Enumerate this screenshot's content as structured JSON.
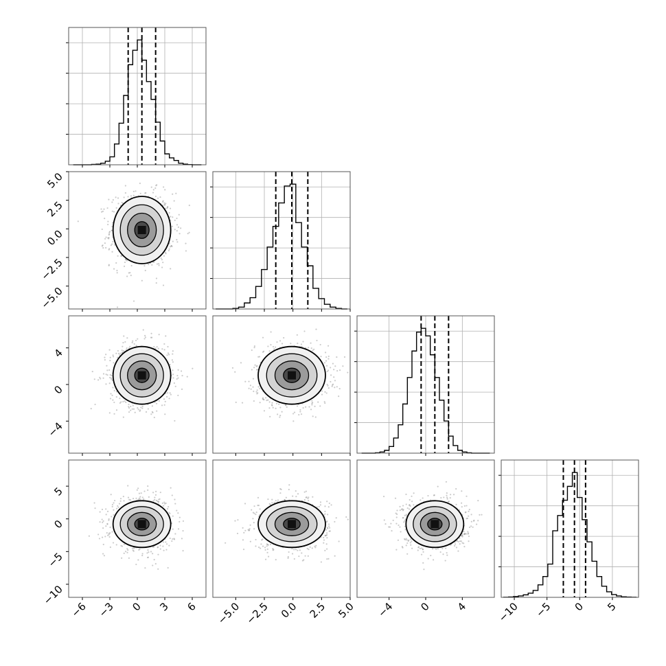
{
  "figure": {
    "n_params": 4,
    "background": "#ffffff",
    "grid_color": "#b0b0b0",
    "hist_color": "#000000",
    "point_color": "#8c8c8c"
  },
  "chart_data": [
    {
      "type": "histogram",
      "panel": "marginal-x0",
      "xlim": [
        -7.5,
        7.5
      ],
      "bin_centers": [
        -6.75,
        -6.25,
        -5.75,
        -5.25,
        -4.75,
        -4.25,
        -3.75,
        -3.25,
        -2.75,
        -2.25,
        -1.75,
        -1.25,
        -0.75,
        -0.25,
        0.25,
        0.75,
        1.25,
        1.75,
        2.25,
        2.75,
        3.25,
        3.75,
        4.25,
        4.75,
        5.25,
        5.75,
        6.25,
        6.75
      ],
      "counts": [
        0,
        0,
        0,
        0,
        2,
        3,
        8,
        18,
        40,
        105,
        210,
        350,
        505,
        578,
        630,
        528,
        420,
        330,
        215,
        120,
        55,
        35,
        22,
        8,
        3,
        1,
        0,
        0
      ],
      "quantiles": [
        -1.0,
        0.5,
        2.0
      ],
      "grid": true
    },
    {
      "type": "histogram",
      "panel": "marginal-x1",
      "xlim": [
        -7.0,
        5.0
      ],
      "bin_centers": [
        -6.5,
        -6.0,
        -5.5,
        -5.0,
        -4.5,
        -4.0,
        -3.5,
        -3.0,
        -2.5,
        -2.0,
        -1.5,
        -1.0,
        -0.5,
        0.0,
        0.5,
        1.0,
        1.5,
        2.0,
        2.5,
        3.0,
        3.5,
        4.0,
        4.5
      ],
      "counts": [
        0,
        0,
        0,
        3,
        10,
        32,
        60,
        120,
        210,
        330,
        440,
        565,
        655,
        665,
        460,
        330,
        230,
        110,
        55,
        25,
        10,
        3,
        0
      ],
      "quantiles": [
        -1.5,
        -0.1,
        1.3
      ],
      "grid": true
    },
    {
      "type": "histogram",
      "panel": "marginal-x2",
      "xlim": [
        -7.5,
        7.5
      ],
      "bin_centers": [
        -6.75,
        -6.25,
        -5.75,
        -5.25,
        -4.75,
        -4.25,
        -3.75,
        -3.25,
        -2.75,
        -2.25,
        -1.75,
        -1.25,
        -0.75,
        -0.25,
        0.25,
        0.75,
        1.25,
        1.75,
        2.25,
        2.75,
        3.25,
        3.75,
        4.25,
        4.75,
        5.25,
        5.75,
        6.25,
        6.75
      ],
      "counts": [
        0,
        0,
        0,
        2,
        6,
        15,
        35,
        80,
        150,
        260,
        400,
        540,
        640,
        660,
        620,
        520,
        400,
        280,
        170,
        90,
        40,
        15,
        6,
        2,
        0,
        0,
        0,
        0
      ],
      "quantiles": [
        -0.5,
        1.0,
        2.5
      ],
      "grid": true
    },
    {
      "type": "histogram",
      "panel": "marginal-x3",
      "xlim": [
        -12,
        9
      ],
      "bin_centers": [
        -11.25,
        -10.5,
        -9.75,
        -9.0,
        -8.25,
        -7.5,
        -6.75,
        -6.0,
        -5.25,
        -4.5,
        -3.75,
        -3.0,
        -2.25,
        -1.5,
        -0.75,
        0.0,
        0.75,
        1.5,
        2.25,
        3.0,
        3.75,
        4.5,
        5.25,
        6.0,
        6.75,
        7.5,
        8.25
      ],
      "counts": [
        1,
        3,
        6,
        10,
        18,
        30,
        50,
        90,
        150,
        240,
        480,
        590,
        700,
        800,
        900,
        720,
        560,
        400,
        260,
        150,
        80,
        40,
        20,
        10,
        4,
        2,
        1
      ],
      "quantiles": [
        -2.5,
        -0.8,
        0.9
      ],
      "grid": true
    },
    {
      "type": "scatter",
      "panel": "joint-x0-x1",
      "center": [
        0.5,
        -0.1
      ],
      "std": [
        1.5,
        1.4
      ],
      "contour_sigma": [
        0.5,
        1.0,
        1.5,
        2.0
      ],
      "xlim": [
        -7.5,
        7.5
      ],
      "ylim": [
        -7.0,
        5.0
      ]
    },
    {
      "type": "scatter",
      "panel": "joint-x0-x2",
      "center": [
        0.5,
        1.0
      ],
      "std": [
        1.5,
        1.5
      ],
      "contour_sigma": [
        0.5,
        1.0,
        1.5,
        2.0
      ],
      "xlim": [
        -7.5,
        7.5
      ],
      "ylim": [
        -7.5,
        7.5
      ]
    },
    {
      "type": "scatter",
      "panel": "joint-x1-x2",
      "center": [
        -0.1,
        1.0
      ],
      "std": [
        1.4,
        1.5
      ],
      "contour_sigma": [
        0.5,
        1.0,
        1.5,
        2.0
      ],
      "xlim": [
        -7.0,
        5.0
      ],
      "ylim": [
        -7.5,
        7.5
      ]
    },
    {
      "type": "scatter",
      "panel": "joint-x0-x3",
      "center": [
        0.5,
        -0.8
      ],
      "std": [
        1.5,
        1.7
      ],
      "contour_sigma": [
        0.5,
        1.0,
        1.5,
        2.0
      ],
      "xlim": [
        -7.5,
        7.5
      ],
      "ylim": [
        -12,
        9
      ]
    },
    {
      "type": "scatter",
      "panel": "joint-x1-x3",
      "center": [
        -0.1,
        -0.8
      ],
      "std": [
        1.4,
        1.7
      ],
      "contour_sigma": [
        0.5,
        1.0,
        1.5,
        2.0
      ],
      "xlim": [
        -7.0,
        5.0
      ],
      "ylim": [
        -12,
        9
      ]
    },
    {
      "type": "scatter",
      "panel": "joint-x2-x3",
      "center": [
        1.0,
        -0.8
      ],
      "std": [
        1.5,
        1.7
      ],
      "contour_sigma": [
        0.5,
        1.0,
        1.5,
        2.0
      ],
      "xlim": [
        -7.5,
        7.5
      ],
      "ylim": [
        -12,
        9
      ]
    }
  ],
  "axes": {
    "x_ticks": [
      {
        "values": [
          -6,
          -3,
          0,
          3,
          6
        ],
        "labels": [
          "−6",
          "−3",
          "0",
          "3",
          "6"
        ]
      },
      {
        "values": [
          -5.0,
          -2.5,
          0.0,
          2.5,
          5.0
        ],
        "labels": [
          "−5.0",
          "−2.5",
          "0.0",
          "2.5",
          "5.0"
        ]
      },
      {
        "values": [
          -4,
          0,
          4
        ],
        "labels": [
          "−4",
          "0",
          "4"
        ]
      },
      {
        "values": [
          -10,
          -5,
          0,
          5
        ],
        "labels": [
          "−10",
          "−5",
          "0",
          "5"
        ]
      }
    ],
    "y_ticks_row1": {
      "values": [
        5.0,
        2.5,
        0.0,
        -2.5,
        -5.0
      ],
      "labels": [
        "5.0",
        "2.5",
        "0.0",
        "−2.5",
        "−5.0"
      ]
    },
    "y_ticks_row2": {
      "values": [
        4,
        0,
        -4
      ],
      "labels": [
        "4",
        "0",
        "−4"
      ]
    },
    "y_ticks_row3": {
      "values": [
        5,
        0,
        -5,
        -10
      ],
      "labels": [
        "5",
        "0",
        "−5",
        "−10"
      ]
    }
  }
}
